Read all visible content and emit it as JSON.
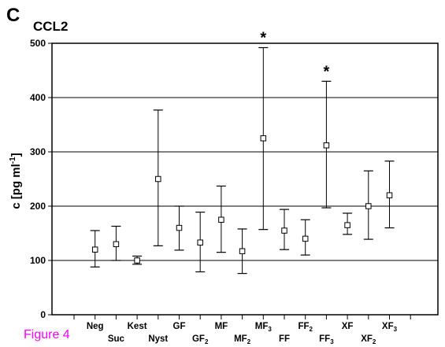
{
  "panel_label": "C",
  "figure_caption": "Figure 4",
  "chart_data": {
    "type": "scatter",
    "title": "CCL2",
    "xlabel": "",
    "ylabel": "c [pg ml⁻¹]",
    "ylim": [
      0,
      500
    ],
    "yticks": [
      0,
      100,
      200,
      300,
      400,
      500
    ],
    "grid": true,
    "error_bars": true,
    "categories": [
      {
        "name": "Neg",
        "sub": ""
      },
      {
        "name": "Suc",
        "sub": ""
      },
      {
        "name": "Kest",
        "sub": ""
      },
      {
        "name": "Nyst",
        "sub": ""
      },
      {
        "name": "GF",
        "sub": ""
      },
      {
        "name": "GF",
        "sub": "2"
      },
      {
        "name": "MF",
        "sub": ""
      },
      {
        "name": "MF",
        "sub": "2"
      },
      {
        "name": "MF",
        "sub": "3"
      },
      {
        "name": "FF",
        "sub": ""
      },
      {
        "name": "FF",
        "sub": "2"
      },
      {
        "name": "FF",
        "sub": "3"
      },
      {
        "name": "XF",
        "sub": ""
      },
      {
        "name": "XF",
        "sub": "2"
      },
      {
        "name": "XF",
        "sub": "3"
      }
    ],
    "values": [
      120,
      130,
      100,
      250,
      160,
      133,
      175,
      117,
      325,
      155,
      140,
      312,
      165,
      200,
      220
    ],
    "err_low": [
      88,
      100,
      93,
      127,
      119,
      79,
      115,
      76,
      157,
      120,
      110,
      197,
      148,
      139,
      160
    ],
    "err_high": [
      155,
      163,
      108,
      377,
      200,
      189,
      237,
      158,
      492,
      194,
      175,
      430,
      187,
      265,
      283
    ],
    "significant": [
      "MF3",
      "FF3"
    ],
    "significance_marker": "*"
  }
}
